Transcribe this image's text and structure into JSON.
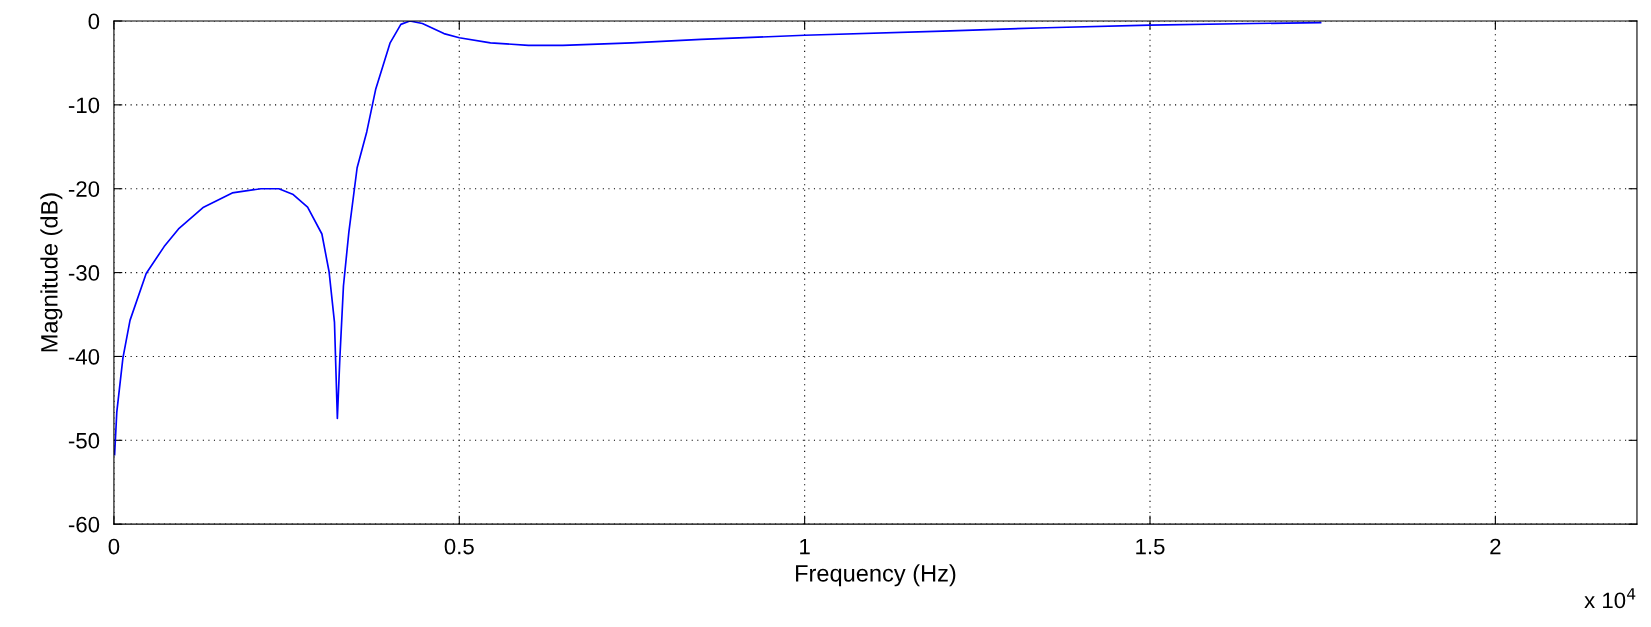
{
  "chart_data": {
    "type": "line",
    "xlabel": "Frequency (Hz)",
    "ylabel": "Magnitude (dB)",
    "annotations": [
      "x 10$^{4}$"
    ],
    "x": [
      0.001,
      0.0042,
      0.013,
      0.0233,
      0.0467,
      0.0727,
      0.0935,
      0.1298,
      0.1713,
      0.2129,
      0.2388,
      0.2596,
      0.2804,
      0.3011,
      0.3115,
      0.3193,
      0.3235,
      0.3271,
      0.3323,
      0.3401,
      0.3521,
      0.3661,
      0.3791,
      0.3999,
      0.4154,
      0.4284,
      0.4466,
      0.4778,
      0.5,
      0.5452,
      0.6,
      0.65,
      0.75,
      0.85,
      1.0,
      1.2,
      1.35,
      1.5,
      1.65,
      1.747
    ],
    "series": [
      {
        "color": "#0000ff",
        "values": [
          -51.7,
          -46.6,
          -40.2,
          -35.7,
          -30.1,
          -26.9,
          -24.8,
          -22.2,
          -20.5,
          -20.0,
          -20.0,
          -20.7,
          -22.2,
          -25.4,
          -29.9,
          -35.9,
          -47.4,
          -40.2,
          -31.6,
          -25.2,
          -17.5,
          -13.2,
          -8.1,
          -2.6,
          -0.4,
          0,
          -0.3,
          -1.5,
          -2.0,
          -2.6,
          -2.9,
          -2.9,
          -2.6,
          -2.2,
          -1.7,
          -1.2,
          -0.8,
          -0.5,
          -0.3,
          -0.2
        ]
      }
    ],
    "xlim": [
      0,
      2.205
    ],
    "ylim": [
      -60,
      0
    ],
    "xticks": [
      0,
      0.5,
      1,
      1.5,
      2
    ],
    "yticks": [
      -60,
      -50,
      -40,
      -30,
      -20,
      -10,
      0
    ],
    "grid": true,
    "line_style": "solid"
  }
}
